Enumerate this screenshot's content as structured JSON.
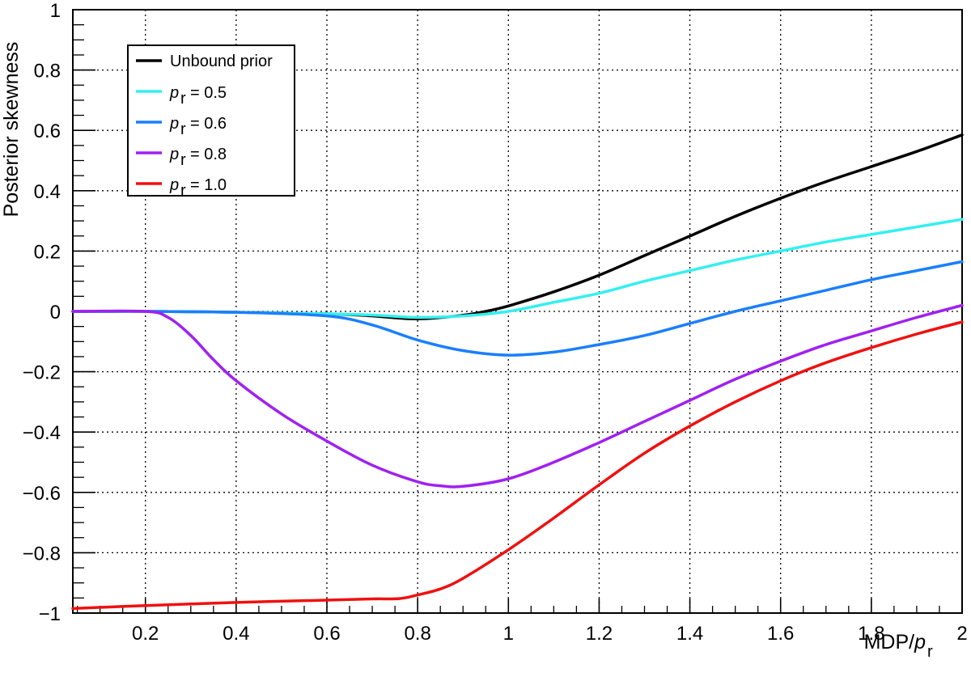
{
  "chart_data": {
    "type": "line",
    "xlabel": "MDP/p_r",
    "ylabel": "Posterior skewness",
    "xlim": [
      0.04,
      2.0
    ],
    "ylim": [
      -1.0,
      1.0
    ],
    "xticks": [
      0.2,
      0.4,
      0.6,
      0.8,
      1,
      1.2,
      1.4,
      1.6,
      1.8,
      2
    ],
    "yticks": [
      -1,
      -0.8,
      -0.6,
      -0.4,
      -0.2,
      0,
      0.2,
      0.4,
      0.6,
      0.8,
      1
    ],
    "grid": true,
    "legend_position": "top-left",
    "series": [
      {
        "name": "Unbound prior",
        "color": "#000000",
        "x": [
          0.04,
          0.2,
          0.4,
          0.6,
          0.7,
          0.8,
          0.9,
          0.95,
          1.0,
          1.1,
          1.2,
          1.3,
          1.4,
          1.5,
          1.6,
          1.7,
          1.8,
          1.9,
          2.0
        ],
        "y": [
          0.0,
          0.0,
          -0.003,
          -0.008,
          -0.015,
          -0.025,
          -0.013,
          0.0,
          0.018,
          0.065,
          0.12,
          0.185,
          0.25,
          0.315,
          0.375,
          0.43,
          0.48,
          0.53,
          0.585
        ]
      },
      {
        "name": "p_r = 0.5",
        "color": "#33f0f0",
        "x": [
          0.04,
          0.2,
          0.4,
          0.6,
          0.7,
          0.8,
          0.9,
          1.0,
          1.1,
          1.2,
          1.3,
          1.4,
          1.5,
          1.6,
          1.7,
          1.8,
          1.9,
          2.0
        ],
        "y": [
          0.0,
          0.0,
          -0.003,
          -0.008,
          -0.012,
          -0.02,
          -0.015,
          0.0,
          0.03,
          0.06,
          0.1,
          0.135,
          0.17,
          0.2,
          0.23,
          0.255,
          0.28,
          0.305
        ]
      },
      {
        "name": "p_r = 0.6",
        "color": "#1a7fff",
        "x": [
          0.04,
          0.2,
          0.4,
          0.6,
          0.7,
          0.8,
          0.9,
          1.0,
          1.1,
          1.2,
          1.3,
          1.4,
          1.5,
          1.6,
          1.7,
          1.8,
          1.9,
          2.0
        ],
        "y": [
          0.0,
          0.0,
          -0.003,
          -0.015,
          -0.045,
          -0.095,
          -0.13,
          -0.145,
          -0.135,
          -0.11,
          -0.08,
          -0.04,
          0.0,
          0.035,
          0.07,
          0.105,
          0.135,
          0.165
        ]
      },
      {
        "name": "p_r = 0.8",
        "color": "#a020f0",
        "x": [
          0.04,
          0.2,
          0.25,
          0.3,
          0.35,
          0.4,
          0.5,
          0.6,
          0.7,
          0.8,
          0.85,
          0.9,
          1.0,
          1.1,
          1.2,
          1.3,
          1.4,
          1.5,
          1.6,
          1.7,
          1.8,
          1.9,
          2.0
        ],
        "y": [
          0.0,
          0.0,
          -0.02,
          -0.08,
          -0.16,
          -0.23,
          -0.34,
          -0.43,
          -0.51,
          -0.565,
          -0.578,
          -0.58,
          -0.555,
          -0.5,
          -0.435,
          -0.365,
          -0.295,
          -0.225,
          -0.165,
          -0.11,
          -0.065,
          -0.02,
          0.02
        ]
      },
      {
        "name": "p_r = 1.0",
        "color": "#f01010",
        "x": [
          0.04,
          0.2,
          0.4,
          0.6,
          0.7,
          0.76,
          0.8,
          0.85,
          0.9,
          1.0,
          1.1,
          1.2,
          1.3,
          1.4,
          1.5,
          1.6,
          1.7,
          1.8,
          1.9,
          2.0
        ],
        "y": [
          -0.985,
          -0.975,
          -0.965,
          -0.957,
          -0.953,
          -0.952,
          -0.94,
          -0.92,
          -0.885,
          -0.79,
          -0.685,
          -0.575,
          -0.47,
          -0.38,
          -0.3,
          -0.23,
          -0.17,
          -0.12,
          -0.075,
          -0.035
        ]
      }
    ]
  },
  "legend_labels": {
    "unbound": "Unbound prior",
    "p_symbol": "p",
    "p_subscript": "r",
    "pr05_value": "= 0.5",
    "pr06_value": "= 0.6",
    "pr08_value": "= 0.8",
    "pr10_value": "= 1.0"
  },
  "axis_titles": {
    "y": "Posterior skewness",
    "x_prefix": "MDP/",
    "x_symbol": "p",
    "x_subscript": "r"
  },
  "x_tick_labels": [
    "0.2",
    "0.4",
    "0.6",
    "0.8",
    "1",
    "1.2",
    "1.4",
    "1.6",
    "1.8",
    "2"
  ],
  "y_tick_labels": [
    "−1",
    "−0.8",
    "−0.6",
    "−0.4",
    "−0.2",
    "0",
    "0.2",
    "0.4",
    "0.6",
    "0.8",
    "1"
  ]
}
